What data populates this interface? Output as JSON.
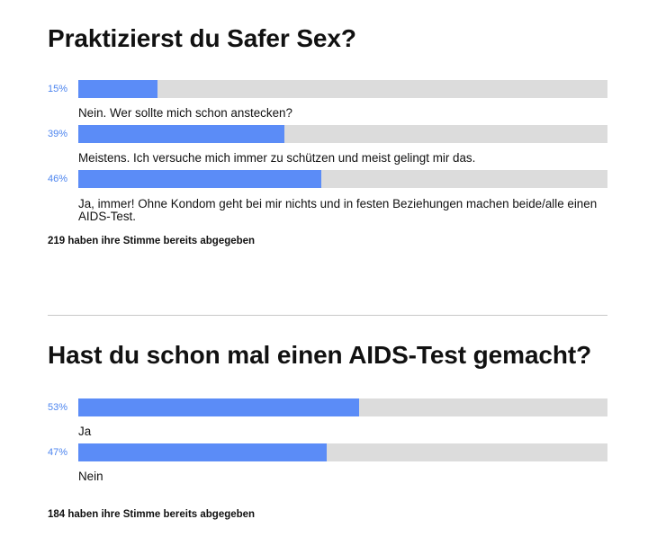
{
  "polls": [
    {
      "title": "Praktizierst du Safer Sex?",
      "options": [
        {
          "percent": 15,
          "percent_label": "15%",
          "label": "Nein. Wer sollte mich schon anstecken?"
        },
        {
          "percent": 39,
          "percent_label": "39%",
          "label": "Meistens. Ich versuche mich immer zu schützen und meist gelingt mir das."
        },
        {
          "percent": 46,
          "percent_label": "46%",
          "label": "Ja, immer! Ohne Kondom geht bei mir nichts und in festen Beziehungen machen beide/alle einen AIDS-Test."
        }
      ],
      "total_text": "219 haben ihre Stimme bereits abgegeben"
    },
    {
      "title": "Hast du schon mal einen AIDS-Test gemacht?",
      "options": [
        {
          "percent": 53,
          "percent_label": "53%",
          "label": "Ja"
        },
        {
          "percent": 47,
          "percent_label": "47%",
          "label": "Nein"
        }
      ],
      "total_text": "184 haben ihre Stimme bereits abgegeben"
    }
  ],
  "colors": {
    "bar_fill": "#5b8cf7",
    "bar_track": "#dcdcdc",
    "percent_text": "#4d85ef",
    "divider": "#c8c8c8"
  }
}
